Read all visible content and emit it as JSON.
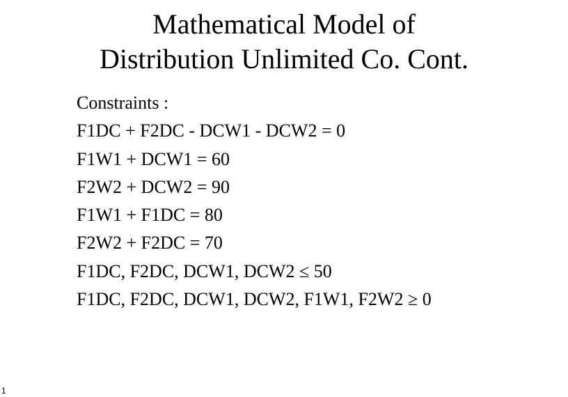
{
  "colors": {
    "background": "#ffffff",
    "text": "#000000"
  },
  "typography": {
    "family": "Times New Roman",
    "title_fontsize_pt": 40,
    "body_fontsize_pt": 26,
    "pagenum_fontsize_pt": 12
  },
  "title": {
    "line1": "Mathematical Model of",
    "line2": "Distribution Unlimited Co. Cont."
  },
  "constraints": {
    "heading": "Constraints :",
    "lines": [
      "F1DC + F2DC - DCW1 - DCW2 = 0",
      "F1W1 + DCW1 = 60",
      "F2W2 + DCW2 = 90",
      "F1W1 + F1DC = 80",
      "F2W2 + F2DC = 70",
      "F1DC, F2DC, DCW1, DCW2 ≤ 50",
      "F1DC, F2DC, DCW1, DCW2, F1W1, F2W2 ≥ 0"
    ]
  },
  "page_number": "1"
}
